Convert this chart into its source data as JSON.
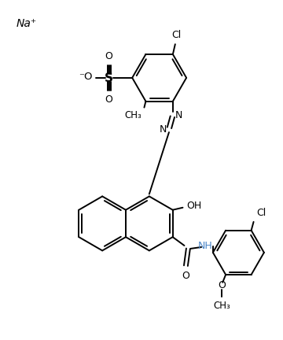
{
  "background_color": "#ffffff",
  "line_color": "#000000",
  "nh_color": "#4a86c8",
  "text_color": "#000000",
  "figure_width": 3.6,
  "figure_height": 4.32,
  "dpi": 100,
  "na_label": "Na⁺",
  "cl_label_top": "Cl",
  "cl_label_right": "Cl",
  "so3_o_minus": "⁻O",
  "so3_s": "S",
  "so3_o_top": "O",
  "so3_o_bot": "O",
  "methyl_label": "CH₃",
  "azo_n1": "N",
  "azo_n2": "N",
  "oh_label": "OH",
  "co_label": "O",
  "nh_label": "NH",
  "o_methoxy": "O",
  "methoxy_me": "CH₃"
}
